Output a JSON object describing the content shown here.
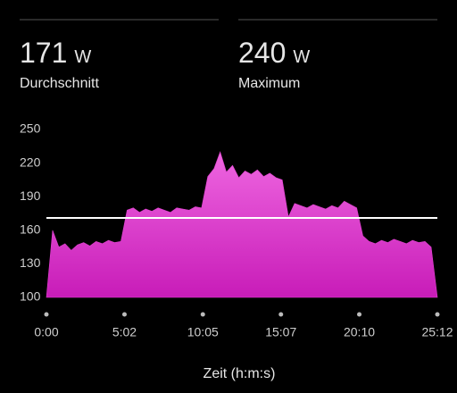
{
  "stats": [
    {
      "value": 171,
      "unit": "W",
      "label": "Durchschnitt"
    },
    {
      "value": 240,
      "unit": "W",
      "label": "Maximum"
    }
  ],
  "chart_data": {
    "type": "area",
    "x_label": "Zeit (h:m:s)",
    "x": [
      0,
      24,
      48,
      72,
      96,
      120,
      144,
      168,
      192,
      216,
      240,
      264,
      288,
      312,
      336,
      360,
      384,
      408,
      432,
      456,
      480,
      504,
      528,
      552,
      576,
      600,
      624,
      648,
      672,
      696,
      720,
      744,
      768,
      792,
      816,
      840,
      864,
      888,
      912,
      936,
      960,
      984,
      1008,
      1032,
      1056,
      1080,
      1104,
      1128,
      1152,
      1176,
      1200,
      1224,
      1248,
      1272,
      1296,
      1320,
      1344,
      1368,
      1392,
      1416,
      1440,
      1464,
      1488,
      1512
    ],
    "values": [
      100,
      160,
      145,
      148,
      142,
      147,
      149,
      146,
      150,
      148,
      151,
      149,
      150,
      178,
      180,
      176,
      179,
      177,
      180,
      178,
      176,
      180,
      179,
      178,
      181,
      180,
      208,
      215,
      230,
      212,
      218,
      207,
      213,
      210,
      214,
      208,
      211,
      207,
      205,
      172,
      184,
      182,
      180,
      183,
      181,
      179,
      182,
      180,
      186,
      183,
      180,
      155,
      150,
      148,
      151,
      149,
      152,
      150,
      148,
      151,
      149,
      150,
      145,
      100
    ],
    "color": "#e040d0",
    "xlim": [
      0,
      1512
    ],
    "xticks": [
      {
        "value": 0,
        "label": "0:00"
      },
      {
        "value": 302,
        "label": "5:02"
      },
      {
        "value": 605,
        "label": "10:05"
      },
      {
        "value": 907,
        "label": "15:07"
      },
      {
        "value": 1210,
        "label": "20:10"
      },
      {
        "value": 1512,
        "label": "25:12"
      }
    ],
    "ylim": [
      100,
      250
    ],
    "yticks": [
      100,
      130,
      160,
      190,
      220,
      250
    ]
  }
}
